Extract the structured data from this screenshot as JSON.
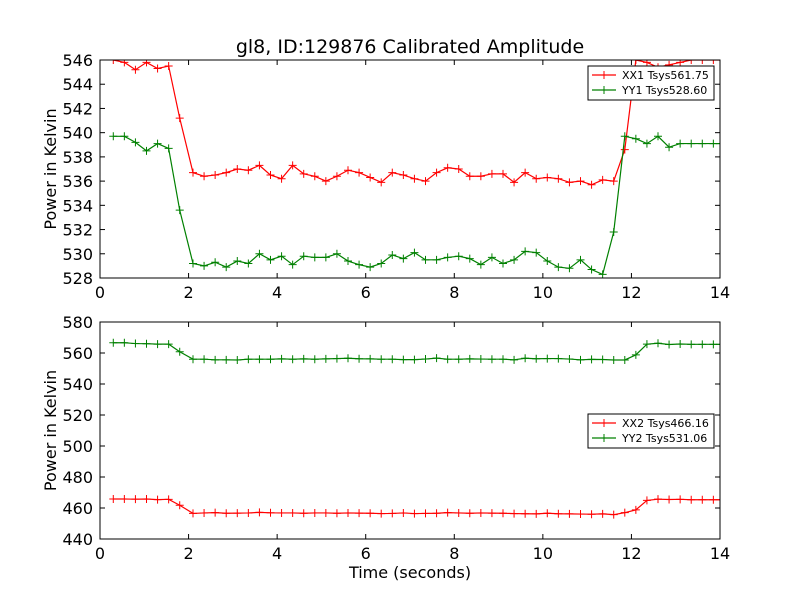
{
  "figure": {
    "title": "gl8, ID:129876 Calibrated Amplitude"
  },
  "chart_data": [
    {
      "type": "line",
      "title": "gl8, ID:129876 Calibrated Amplitude",
      "xlabel": "",
      "ylabel": "Power in Kelvin",
      "xlim": [
        0,
        14
      ],
      "ylim": [
        528,
        546
      ],
      "x_ticks": [
        0,
        2,
        4,
        6,
        8,
        10,
        12,
        14
      ],
      "y_ticks": [
        528,
        530,
        532,
        534,
        536,
        538,
        540,
        542,
        544,
        546
      ],
      "legend_position": "top-right",
      "grid": false,
      "series": [
        {
          "name": "XX1 Tsys561.75",
          "color": "#ff0000",
          "x": [
            0.3,
            0.55,
            0.8,
            1.05,
            1.3,
            1.55,
            1.8,
            2.1,
            2.35,
            2.6,
            2.85,
            3.1,
            3.35,
            3.6,
            3.85,
            4.1,
            4.35,
            4.6,
            4.85,
            5.1,
            5.35,
            5.6,
            5.85,
            6.1,
            6.35,
            6.6,
            6.85,
            7.1,
            7.35,
            7.6,
            7.85,
            8.1,
            8.35,
            8.6,
            8.85,
            9.1,
            9.35,
            9.6,
            9.85,
            10.1,
            10.35,
            10.6,
            10.85,
            11.1,
            11.35,
            11.6,
            11.85,
            12.1,
            12.35,
            12.6,
            12.85,
            13.1,
            13.35,
            13.6,
            13.85,
            14.0
          ],
          "values": [
            546.0,
            545.8,
            545.2,
            545.8,
            545.3,
            545.5,
            541.2,
            536.7,
            536.4,
            536.5,
            536.7,
            537.0,
            536.9,
            537.3,
            536.5,
            536.2,
            537.3,
            536.6,
            536.4,
            536.0,
            536.4,
            536.9,
            536.7,
            536.3,
            535.9,
            536.7,
            536.5,
            536.2,
            536.0,
            536.7,
            537.1,
            537.0,
            536.4,
            536.4,
            536.6,
            536.6,
            535.9,
            536.7,
            536.2,
            536.3,
            536.2,
            535.9,
            536.0,
            535.7,
            536.1,
            536.0,
            538.6,
            546.0,
            545.8,
            545.4,
            545.6,
            545.8,
            546.0,
            546.0,
            546.0,
            546.0
          ]
        },
        {
          "name": "YY1 Tsys528.60",
          "color": "#008000",
          "x": [
            0.3,
            0.55,
            0.8,
            1.05,
            1.3,
            1.55,
            1.8,
            2.1,
            2.35,
            2.6,
            2.85,
            3.1,
            3.35,
            3.6,
            3.85,
            4.1,
            4.35,
            4.6,
            4.85,
            5.1,
            5.35,
            5.6,
            5.85,
            6.1,
            6.35,
            6.6,
            6.85,
            7.1,
            7.35,
            7.6,
            7.85,
            8.1,
            8.35,
            8.6,
            8.85,
            9.1,
            9.35,
            9.6,
            9.85,
            10.1,
            10.35,
            10.6,
            10.85,
            11.1,
            11.35,
            11.6,
            11.85,
            12.1,
            12.35,
            12.6,
            12.85,
            13.1,
            13.35,
            13.6,
            13.85,
            14.0
          ],
          "values": [
            539.7,
            539.7,
            539.2,
            538.5,
            539.1,
            538.7,
            533.6,
            529.2,
            529.0,
            529.3,
            528.9,
            529.4,
            529.2,
            530.0,
            529.5,
            529.8,
            529.1,
            529.8,
            529.7,
            529.7,
            530.0,
            529.4,
            529.1,
            528.9,
            529.2,
            529.9,
            529.6,
            530.1,
            529.5,
            529.5,
            529.7,
            529.8,
            529.6,
            529.1,
            529.7,
            529.2,
            529.5,
            530.2,
            530.1,
            529.4,
            528.9,
            528.8,
            529.5,
            528.7,
            528.3,
            531.8,
            539.7,
            539.5,
            539.1,
            539.7,
            538.8,
            539.1,
            539.1,
            539.1,
            539.1,
            539.1
          ]
        }
      ]
    },
    {
      "type": "line",
      "title": "",
      "xlabel": "Time (seconds)",
      "ylabel": "Power in Kelvin",
      "xlim": [
        0,
        14
      ],
      "ylim": [
        440,
        580
      ],
      "x_ticks": [
        0,
        2,
        4,
        6,
        8,
        10,
        12,
        14
      ],
      "y_ticks": [
        440,
        460,
        480,
        500,
        520,
        540,
        560,
        580
      ],
      "legend_position": "center-right",
      "grid": false,
      "series": [
        {
          "name": "XX2 Tsys466.16",
          "color": "#ff0000",
          "x": [
            0.3,
            0.55,
            0.8,
            1.05,
            1.3,
            1.55,
            1.8,
            2.1,
            2.35,
            2.6,
            2.85,
            3.1,
            3.35,
            3.6,
            3.85,
            4.1,
            4.35,
            4.6,
            4.85,
            5.1,
            5.35,
            5.6,
            5.85,
            6.1,
            6.35,
            6.6,
            6.85,
            7.1,
            7.35,
            7.6,
            7.85,
            8.1,
            8.35,
            8.6,
            8.85,
            9.1,
            9.35,
            9.6,
            9.85,
            10.1,
            10.35,
            10.6,
            10.85,
            11.1,
            11.35,
            11.6,
            11.85,
            12.1,
            12.35,
            12.6,
            12.85,
            13.1,
            13.35,
            13.6,
            13.85,
            14.0
          ],
          "values": [
            465.8,
            465.8,
            465.7,
            465.8,
            465.4,
            465.6,
            461.8,
            456.5,
            456.8,
            457.0,
            456.6,
            456.7,
            456.8,
            457.2,
            456.9,
            456.8,
            456.8,
            456.6,
            456.8,
            456.8,
            456.6,
            456.8,
            456.7,
            456.6,
            456.4,
            456.5,
            456.8,
            456.4,
            456.5,
            456.6,
            457.0,
            456.8,
            456.6,
            456.8,
            456.7,
            456.6,
            456.4,
            456.3,
            456.2,
            456.6,
            456.3,
            456.2,
            456.1,
            456.0,
            456.2,
            455.7,
            457.0,
            458.8,
            464.9,
            465.7,
            465.5,
            465.6,
            465.3,
            465.3,
            465.3,
            465.3
          ]
        },
        {
          "name": "YY2 Tsys531.06",
          "color": "#008000",
          "x": [
            0.3,
            0.55,
            0.8,
            1.05,
            1.3,
            1.55,
            1.8,
            2.1,
            2.35,
            2.6,
            2.85,
            3.1,
            3.35,
            3.6,
            3.85,
            4.1,
            4.35,
            4.6,
            4.85,
            5.1,
            5.35,
            5.6,
            5.85,
            6.1,
            6.35,
            6.6,
            6.85,
            7.1,
            7.35,
            7.6,
            7.85,
            8.1,
            8.35,
            8.6,
            8.85,
            9.1,
            9.35,
            9.6,
            9.85,
            10.1,
            10.35,
            10.6,
            10.85,
            11.1,
            11.35,
            11.6,
            11.85,
            12.1,
            12.35,
            12.6,
            12.85,
            13.1,
            13.35,
            13.6,
            13.85,
            14.0
          ],
          "values": [
            566.6,
            566.6,
            566.1,
            566.0,
            565.7,
            565.7,
            560.8,
            556.0,
            556.0,
            555.6,
            555.6,
            555.5,
            556.0,
            556.0,
            556.0,
            556.2,
            556.0,
            556.2,
            556.0,
            556.2,
            556.4,
            556.6,
            556.3,
            556.2,
            556.0,
            556.0,
            555.7,
            555.7,
            556.1,
            556.7,
            556.0,
            556.0,
            556.2,
            556.1,
            556.0,
            556.0,
            555.6,
            556.6,
            556.3,
            556.4,
            556.4,
            556.1,
            555.6,
            555.9,
            555.8,
            555.5,
            555.5,
            558.8,
            565.7,
            566.3,
            565.5,
            565.8,
            565.6,
            565.6,
            565.6,
            565.6
          ]
        }
      ]
    }
  ]
}
